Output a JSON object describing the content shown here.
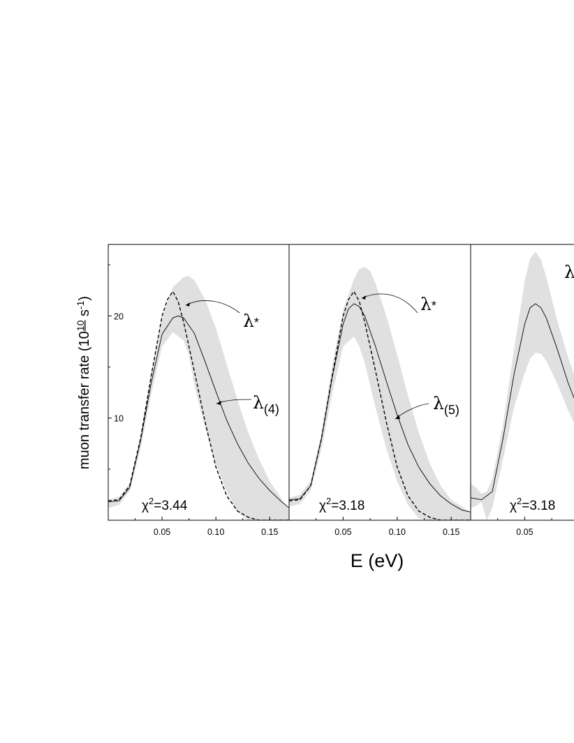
{
  "chart_data": {
    "type": "line",
    "ylabel": "muon transfer rate (10¹⁰ s⁻¹)",
    "ylabel_parts": {
      "prefix": "muon transfer rate (10",
      "exp1": "10",
      "mid": " s",
      "exp2": "-1",
      "suffix": ")"
    },
    "xlabel": "E (eV)",
    "xlim": [
      0.0,
      0.168
    ],
    "ylim": [
      0.0,
      27.0
    ],
    "y_ticks": [
      10,
      20
    ],
    "x_ticks": [
      0.05,
      0.1,
      0.15
    ],
    "x_tick_labels": [
      "0.05",
      "0.10",
      "0.15"
    ],
    "panels": [
      {
        "chi2_label": "χ",
        "chi2_sup": "2",
        "chi2_value": "=3.44",
        "band": {
          "x": [
            0.0,
            0.01,
            0.02,
            0.03,
            0.04,
            0.05,
            0.06,
            0.07,
            0.075,
            0.08,
            0.09,
            0.1,
            0.11,
            0.12,
            0.13,
            0.14,
            0.15,
            0.168
          ],
          "upper": [
            2.0,
            2.3,
            3.6,
            8.2,
            14.5,
            19.8,
            22.8,
            23.8,
            23.9,
            23.5,
            21.6,
            18.8,
            15.3,
            11.8,
            8.6,
            6.0,
            3.8,
            1.0
          ],
          "lower": [
            1.2,
            1.5,
            2.9,
            7.0,
            12.4,
            17.0,
            18.4,
            17.6,
            16.2,
            13.2,
            9.0,
            5.5,
            2.8,
            0.8,
            0.0,
            0.0,
            0.0,
            0.0
          ]
        },
        "series": [
          {
            "name": "λ",
            "subscript": "(4)",
            "style": "solid",
            "x": [
              0.0,
              0.01,
              0.02,
              0.03,
              0.04,
              0.05,
              0.06,
              0.065,
              0.07,
              0.08,
              0.09,
              0.1,
              0.11,
              0.12,
              0.13,
              0.14,
              0.15,
              0.16,
              0.168
            ],
            "y": [
              1.8,
              1.9,
              3.2,
              7.8,
              13.5,
              18.2,
              19.8,
              20.0,
              19.8,
              18.3,
              15.5,
              12.6,
              9.8,
              7.5,
              5.6,
              4.1,
              2.9,
              1.9,
              1.2
            ]
          },
          {
            "name": "λ",
            "subscript": "*",
            "style": "dashed",
            "x": [
              0.0,
              0.01,
              0.02,
              0.03,
              0.04,
              0.05,
              0.055,
              0.06,
              0.065,
              0.07,
              0.08,
              0.09,
              0.1,
              0.11,
              0.12,
              0.13,
              0.14,
              0.15,
              0.168
            ],
            "y": [
              1.9,
              2.0,
              3.4,
              8.0,
              14.2,
              20.0,
              21.6,
              22.4,
              21.4,
              19.4,
              14.6,
              9.6,
              5.2,
              2.4,
              0.9,
              0.3,
              0.0,
              0.0,
              0.0
            ]
          }
        ]
      },
      {
        "chi2_label": "χ",
        "chi2_sup": "2",
        "chi2_value": "=3.18",
        "band": {
          "x": [
            0.0,
            0.01,
            0.02,
            0.03,
            0.04,
            0.05,
            0.06,
            0.065,
            0.07,
            0.075,
            0.08,
            0.09,
            0.1,
            0.11,
            0.12,
            0.13,
            0.14,
            0.15,
            0.168
          ],
          "upper": [
            2.2,
            2.5,
            3.8,
            8.6,
            15.2,
            20.6,
            23.6,
            24.6,
            24.8,
            24.4,
            23.2,
            20.0,
            16.2,
            12.2,
            8.6,
            5.6,
            3.4,
            2.0,
            0.8
          ],
          "lower": [
            1.3,
            1.6,
            2.9,
            7.0,
            12.4,
            17.0,
            18.0,
            17.0,
            15.4,
            13.2,
            11.0,
            7.0,
            3.8,
            1.5,
            0.2,
            0.0,
            0.0,
            0.0,
            0.0
          ]
        },
        "series": [
          {
            "name": "λ",
            "subscript": "(5)",
            "style": "solid",
            "x": [
              0.0,
              0.01,
              0.02,
              0.03,
              0.04,
              0.05,
              0.055,
              0.06,
              0.065,
              0.07,
              0.08,
              0.09,
              0.1,
              0.11,
              0.12,
              0.13,
              0.14,
              0.15,
              0.16,
              0.168
            ],
            "y": [
              2.0,
              2.1,
              3.4,
              8.0,
              14.0,
              19.2,
              20.7,
              21.2,
              20.9,
              20.0,
              17.0,
              13.6,
              10.3,
              7.4,
              5.2,
              3.6,
              2.4,
              1.6,
              1.0,
              0.8
            ]
          },
          {
            "name": "λ",
            "subscript": "*",
            "style": "dashed",
            "x": [
              0.0,
              0.01,
              0.02,
              0.03,
              0.04,
              0.05,
              0.055,
              0.06,
              0.065,
              0.07,
              0.08,
              0.09,
              0.1,
              0.11,
              0.12,
              0.13,
              0.14,
              0.15,
              0.168
            ],
            "y": [
              1.9,
              2.0,
              3.4,
              8.0,
              14.2,
              20.0,
              21.6,
              22.4,
              21.4,
              19.4,
              14.6,
              9.6,
              5.2,
              2.4,
              0.9,
              0.3,
              0.0,
              0.0,
              0.0
            ]
          }
        ]
      },
      {
        "chi2_label": "χ",
        "chi2_sup": "2",
        "chi2_value": "=3.18",
        "partial_label": "λ",
        "band": {
          "x": [
            0.0,
            0.005,
            0.01,
            0.015,
            0.02,
            0.03,
            0.04,
            0.05,
            0.055,
            0.06,
            0.065,
            0.07,
            0.08,
            0.09,
            0.1
          ],
          "upper": [
            3.6,
            3.2,
            2.6,
            2.8,
            4.0,
            9.4,
            16.6,
            23.4,
            25.6,
            26.3,
            25.5,
            23.8,
            19.6,
            16.0,
            13.0
          ],
          "lower": [
            1.2,
            1.4,
            1.8,
            0.0,
            1.2,
            6.0,
            11.0,
            14.4,
            15.8,
            16.4,
            16.3,
            15.6,
            13.4,
            10.8,
            8.5
          ]
        },
        "series": [
          {
            "name": "",
            "style": "solid",
            "x": [
              0.0,
              0.01,
              0.02,
              0.03,
              0.04,
              0.05,
              0.055,
              0.06,
              0.065,
              0.07,
              0.08,
              0.09,
              0.1
            ],
            "y": [
              2.2,
              2.0,
              2.8,
              8.0,
              14.2,
              19.2,
              20.8,
              21.2,
              20.8,
              19.8,
              16.8,
              13.5,
              10.8
            ]
          }
        ]
      }
    ]
  }
}
